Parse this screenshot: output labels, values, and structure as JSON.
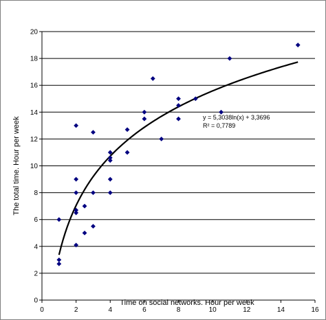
{
  "chart_data": {
    "type": "scatter",
    "title": "",
    "xlabel": "Time on social networks. Hour per week",
    "ylabel": "The total time. Hour per week",
    "xlim": [
      0,
      16
    ],
    "ylim": [
      0,
      20
    ],
    "x_ticks": [
      0,
      2,
      4,
      6,
      8,
      10,
      12,
      14,
      16
    ],
    "y_ticks": [
      0,
      2,
      4,
      6,
      8,
      10,
      12,
      14,
      16,
      18,
      20
    ],
    "grid": "horizontal",
    "legend": "none",
    "marker": "diamond",
    "marker_color": "#000080",
    "trendline_color": "#000000",
    "points": [
      [
        1,
        6
      ],
      [
        1,
        3
      ],
      [
        1,
        2.7
      ],
      [
        2,
        13
      ],
      [
        2,
        9
      ],
      [
        2,
        8
      ],
      [
        2,
        6.7
      ],
      [
        2,
        6.5
      ],
      [
        2,
        4.1
      ],
      [
        2.5,
        7
      ],
      [
        2.5,
        5
      ],
      [
        3,
        12.5
      ],
      [
        3,
        8
      ],
      [
        3,
        5.5
      ],
      [
        4,
        11
      ],
      [
        4,
        10.6
      ],
      [
        4,
        10.4
      ],
      [
        4,
        9
      ],
      [
        4,
        8
      ],
      [
        5,
        12.7
      ],
      [
        5,
        11
      ],
      [
        6,
        14
      ],
      [
        6,
        13.5
      ],
      [
        6.5,
        16.5
      ],
      [
        7,
        12
      ],
      [
        8,
        15
      ],
      [
        8,
        14.5
      ],
      [
        8,
        13.5
      ],
      [
        9,
        15
      ],
      [
        10.5,
        14
      ],
      [
        11,
        18
      ],
      [
        15,
        19
      ]
    ],
    "trendline": {
      "type": "logarithmic",
      "a": 5.3038,
      "b": 3.3696,
      "x_range": [
        1,
        15
      ],
      "equation": "y = 5,3038ln(x) + 3,3696",
      "r_squared": "R² = 0,7789"
    }
  }
}
